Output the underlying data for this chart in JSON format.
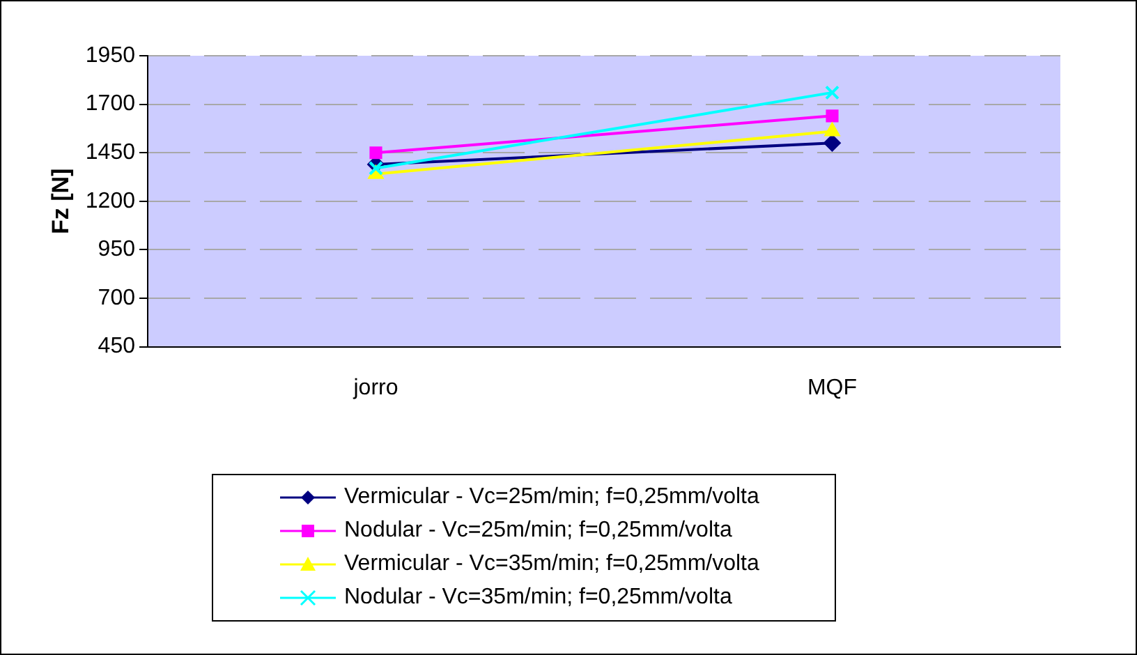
{
  "chart_data": {
    "type": "line",
    "ylabel": "Fz [N]",
    "categories": [
      "jorro",
      "MQF"
    ],
    "series": [
      {
        "name": "Vermicular - Vc=25m/min; f=0,25mm/volta",
        "color": "#000080",
        "marker": "diamond",
        "values": [
          1390,
          1500
        ]
      },
      {
        "name": "Nodular - Vc=25m/min; f=0,25mm/volta",
        "color": "#ff00ff",
        "marker": "square",
        "values": [
          1450,
          1640
        ]
      },
      {
        "name": "Vermicular - Vc=35m/min; f=0,25mm/volta",
        "color": "#ffff00",
        "marker": "triangle",
        "values": [
          1340,
          1560
        ]
      },
      {
        "name": "Nodular - Vc=35m/min; f=0,25mm/volta",
        "color": "#00ffff",
        "marker": "cross",
        "values": [
          1370,
          1760
        ]
      }
    ],
    "ylim": [
      450,
      1950
    ],
    "yticks": [
      450,
      700,
      950,
      1200,
      1450,
      1700,
      1950
    ],
    "grid": "y",
    "legend": "bottom"
  }
}
